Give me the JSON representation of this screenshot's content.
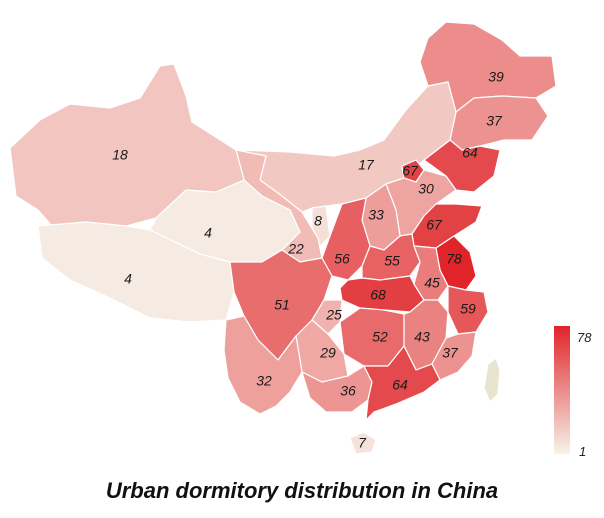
{
  "title": "Urban dormitory distribution in China",
  "scale": {
    "min": 1,
    "max": 78,
    "min_label": "1",
    "max_label": "78",
    "color_low": "#f7f3ea",
    "color_high": "#e0242a"
  },
  "no_data_color": "#e9e4d0",
  "regions": [
    {
      "name": "Heilongjiang",
      "value": 39
    },
    {
      "name": "Jilin",
      "value": 37
    },
    {
      "name": "Liaoning",
      "value": 64
    },
    {
      "name": "Inner Mongolia",
      "value": 17
    },
    {
      "name": "Beijing",
      "value": 67
    },
    {
      "name": "Tianjin",
      "value": 30
    },
    {
      "name": "Hebei",
      "value": 30
    },
    {
      "name": "Shanxi",
      "value": 33
    },
    {
      "name": "Shandong",
      "value": 67
    },
    {
      "name": "Jiangsu",
      "value": 78
    },
    {
      "name": "Henan",
      "value": 55
    },
    {
      "name": "Shaanxi",
      "value": 56
    },
    {
      "name": "Ningxia",
      "value": 8
    },
    {
      "name": "Gansu",
      "value": 22
    },
    {
      "name": "Qinghai",
      "value": 4
    },
    {
      "name": "Xinjiang",
      "value": 18
    },
    {
      "name": "Tibet",
      "value": 4
    },
    {
      "name": "Sichuan",
      "value": 51
    },
    {
      "name": "Chongqing",
      "value": 25
    },
    {
      "name": "Hubei",
      "value": 68
    },
    {
      "name": "Anhui",
      "value": 45
    },
    {
      "name": "Zhejiang",
      "value": 59
    },
    {
      "name": "Hunan",
      "value": 52
    },
    {
      "name": "Jiangxi",
      "value": 43
    },
    {
      "name": "Fujian",
      "value": 37
    },
    {
      "name": "Guizhou",
      "value": 29
    },
    {
      "name": "Yunnan",
      "value": 32
    },
    {
      "name": "Guangxi",
      "value": 36
    },
    {
      "name": "Guangdong",
      "value": 64
    },
    {
      "name": "Hainan",
      "value": 7
    },
    {
      "name": "Taiwan",
      "value": null
    }
  ]
}
